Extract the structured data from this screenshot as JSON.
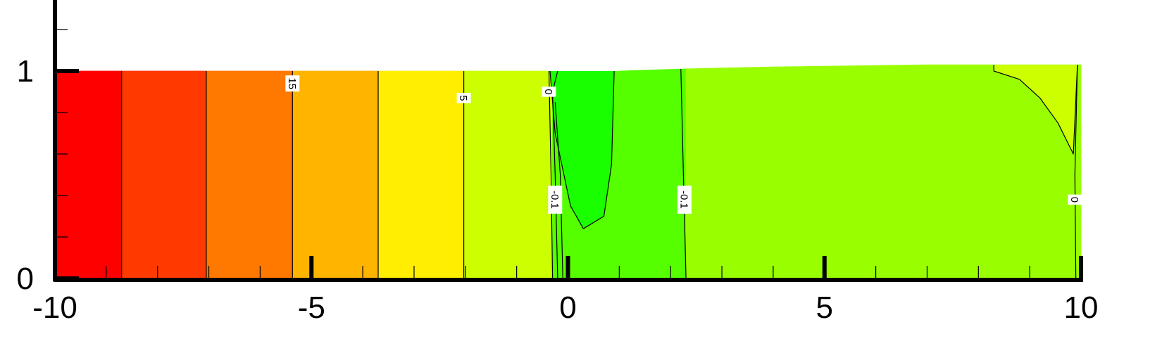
{
  "chart_data": {
    "type": "heatmap",
    "subtype": "filled-contour",
    "title": "",
    "xlabel": "",
    "ylabel": "",
    "xlim": [
      -10,
      10
    ],
    "ylim": [
      0,
      1.25
    ],
    "x_ticks": [
      {
        "value": -10,
        "label": "-10"
      },
      {
        "value": -5,
        "label": "-5"
      },
      {
        "value": 0,
        "label": "0"
      },
      {
        "value": 5,
        "label": "5"
      },
      {
        "value": 10,
        "label": "10"
      }
    ],
    "y_ticks": [
      {
        "value": 0,
        "label": "0"
      },
      {
        "value": 1,
        "label": "1"
      }
    ],
    "grid": false,
    "free_surface": [
      [
        -10,
        1.0
      ],
      [
        -3,
        1.0
      ],
      [
        -0.4,
        1.0
      ],
      [
        0.2,
        0.99
      ],
      [
        1.0,
        1.0
      ],
      [
        2.2,
        1.01
      ],
      [
        4,
        1.02
      ],
      [
        7,
        1.03
      ],
      [
        10,
        1.03
      ]
    ],
    "bands": [
      {
        "x0": -10.0,
        "x1": -8.7,
        "color": "#ff0000"
      },
      {
        "x0": -8.7,
        "x1": -7.05,
        "color": "#ff3a00"
      },
      {
        "x0": -7.05,
        "x1": -5.37,
        "color": "#ff7800"
      },
      {
        "x0": -5.37,
        "x1": -3.7,
        "color": "#ffb400"
      },
      {
        "x0": -3.7,
        "x1": -2.03,
        "color": "#ffee00"
      },
      {
        "x0": -2.03,
        "x1": -0.3,
        "color": "#ccff00"
      },
      {
        "x0": -0.3,
        "x1": 2.3,
        "color": "#55ff00"
      },
      {
        "x0": 2.3,
        "x1": 10.0,
        "color": "#99ff00"
      }
    ],
    "pockets": [
      {
        "color": "#1aff00",
        "points": [
          [
            -0.35,
            1.0
          ],
          [
            0.9,
            1.0
          ],
          [
            0.85,
            0.55
          ],
          [
            0.7,
            0.3
          ],
          [
            0.3,
            0.24
          ],
          [
            0.05,
            0.35
          ],
          [
            -0.25,
            0.7
          ]
        ]
      },
      {
        "color": "#ccff00",
        "points": [
          [
            8.3,
            1.03
          ],
          [
            9.93,
            1.03
          ],
          [
            9.85,
            0.6
          ],
          [
            9.55,
            0.75
          ],
          [
            9.2,
            0.87
          ],
          [
            8.8,
            0.96
          ],
          [
            8.3,
            1.0
          ]
        ]
      }
    ],
    "contour_lines": [
      {
        "points": [
          [
            -8.7,
            0
          ],
          [
            -8.7,
            1.0
          ]
        ]
      },
      {
        "points": [
          [
            -7.05,
            0
          ],
          [
            -7.05,
            1.0
          ]
        ]
      },
      {
        "points": [
          [
            -5.37,
            0
          ],
          [
            -5.37,
            1.0
          ]
        ]
      },
      {
        "points": [
          [
            -3.7,
            0
          ],
          [
            -3.7,
            1.0
          ]
        ]
      },
      {
        "points": [
          [
            -2.03,
            0
          ],
          [
            -2.03,
            1.0
          ]
        ]
      },
      {
        "points": [
          [
            -0.3,
            0
          ],
          [
            -0.33,
            0.5
          ],
          [
            -0.37,
            1.0
          ]
        ]
      },
      {
        "points": [
          [
            -0.2,
            0
          ],
          [
            -0.25,
            0.5
          ],
          [
            -0.3,
            0.9
          ],
          [
            -0.2,
            1.0
          ]
        ]
      },
      {
        "points": [
          [
            -0.1,
            0
          ],
          [
            -0.15,
            0.5
          ],
          [
            -0.25,
            0.85
          ]
        ]
      },
      {
        "points": [
          [
            -0.35,
            1.0
          ],
          [
            -0.25,
            0.7
          ],
          [
            0.05,
            0.35
          ],
          [
            0.3,
            0.24
          ],
          [
            0.7,
            0.3
          ],
          [
            0.85,
            0.55
          ],
          [
            0.9,
            1.0
          ]
        ]
      },
      {
        "points": [
          [
            2.3,
            0
          ],
          [
            2.25,
            0.5
          ],
          [
            2.2,
            1.01
          ]
        ]
      },
      {
        "points": [
          [
            9.9,
            0
          ],
          [
            9.88,
            0.5
          ],
          [
            9.93,
            1.03
          ]
        ]
      },
      {
        "points": [
          [
            8.3,
            1.03
          ],
          [
            8.3,
            1.0
          ],
          [
            8.8,
            0.96
          ],
          [
            9.2,
            0.87
          ],
          [
            9.55,
            0.75
          ],
          [
            9.85,
            0.6
          ],
          [
            9.93,
            1.03
          ]
        ]
      }
    ],
    "contour_labels": [
      {
        "text": "15",
        "x": -5.37,
        "y": 0.94
      },
      {
        "text": "5",
        "x": -2.03,
        "y": 0.87
      },
      {
        "text": "0",
        "x": -0.37,
        "y": 0.9
      },
      {
        "text": "-0.1",
        "x": -0.25,
        "y": 0.38
      },
      {
        "text": "-0.1",
        "x": 2.27,
        "y": 0.38
      },
      {
        "text": "0",
        "x": 9.88,
        "y": 0.38
      }
    ]
  }
}
